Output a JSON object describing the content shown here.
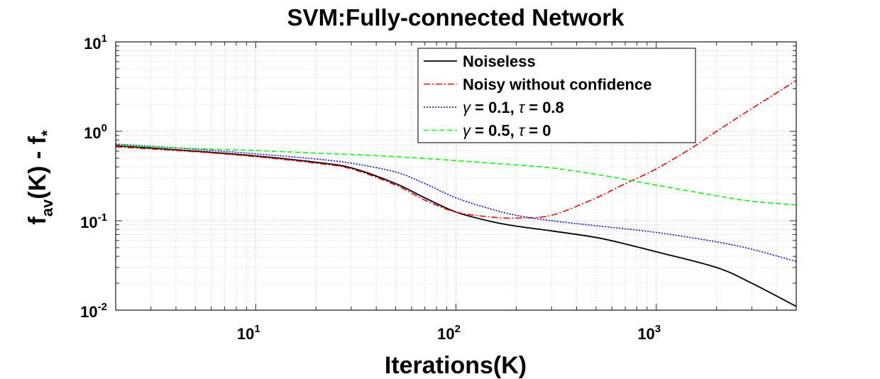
{
  "chart_data": {
    "type": "line",
    "title": "SVM:Fully-connected Network",
    "xlabel": "Iterations(K)",
    "ylabel": {
      "parts": [
        "f",
        "av",
        "(K) - f",
        "*"
      ]
    },
    "x_scale": "log",
    "y_scale": "log",
    "xlim": [
      2,
      5000
    ],
    "ylim": [
      0.01,
      10
    ],
    "grid": true,
    "minor_grid": true,
    "legend_position": "top-right",
    "x_ticks": [
      {
        "value": 10,
        "base": "10",
        "exp": "1"
      },
      {
        "value": 100,
        "base": "10",
        "exp": "2"
      },
      {
        "value": 1000,
        "base": "10",
        "exp": "3"
      }
    ],
    "y_ticks": [
      {
        "value": 0.01,
        "base": "10",
        "exp": "-2"
      },
      {
        "value": 0.1,
        "base": "10",
        "exp": "-1"
      },
      {
        "value": 1,
        "base": "10",
        "exp": "0"
      },
      {
        "value": 10,
        "base": "10",
        "exp": "1"
      }
    ],
    "series": [
      {
        "name": "Noiseless",
        "color": "#000000",
        "dash": "solid",
        "x": [
          2,
          5,
          10,
          20,
          30,
          50,
          70,
          100,
          150,
          200,
          300,
          500,
          700,
          1000,
          2000,
          3000,
          5000
        ],
        "y": [
          0.69,
          0.6,
          0.53,
          0.45,
          0.39,
          0.26,
          0.18,
          0.125,
          0.098,
          0.087,
          0.077,
          0.065,
          0.055,
          0.045,
          0.03,
          0.02,
          0.011
        ]
      },
      {
        "name": "Noisy without confidence",
        "color": "#ff0000",
        "dash": "dashdot",
        "x": [
          2,
          5,
          10,
          20,
          30,
          50,
          70,
          100,
          150,
          200,
          300,
          500,
          700,
          1000,
          1500,
          2000,
          3000,
          5000
        ],
        "y": [
          0.67,
          0.59,
          0.52,
          0.44,
          0.38,
          0.25,
          0.17,
          0.125,
          0.11,
          0.107,
          0.115,
          0.18,
          0.26,
          0.38,
          0.65,
          1.0,
          1.8,
          3.7
        ]
      },
      {
        "name": "γ = 0.1, τ = 0.8",
        "label_parts": [
          "γ",
          " = 0.1, ",
          "τ",
          " = 0.8"
        ],
        "color": "#0000ff",
        "dash": "dotted",
        "x": [
          2,
          5,
          10,
          20,
          30,
          50,
          70,
          100,
          150,
          200,
          300,
          500,
          1000,
          2000,
          3000,
          5000
        ],
        "y": [
          0.72,
          0.63,
          0.56,
          0.49,
          0.44,
          0.35,
          0.26,
          0.18,
          0.135,
          0.115,
          0.1,
          0.088,
          0.074,
          0.058,
          0.048,
          0.035
        ]
      },
      {
        "name": "γ = 0.5, τ = 0",
        "label_parts": [
          "γ",
          " = 0.5, ",
          "τ",
          " = 0"
        ],
        "color": "#00ff00",
        "dash": "dashed",
        "x": [
          2,
          5,
          10,
          20,
          30,
          50,
          100,
          200,
          300,
          500,
          700,
          1000,
          2000,
          3000,
          5000
        ],
        "y": [
          0.7,
          0.64,
          0.61,
          0.57,
          0.55,
          0.52,
          0.47,
          0.42,
          0.39,
          0.33,
          0.29,
          0.25,
          0.19,
          0.165,
          0.15
        ]
      }
    ]
  }
}
